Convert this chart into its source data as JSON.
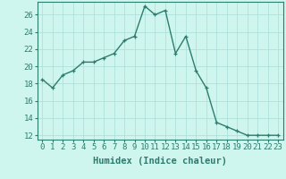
{
  "x": [
    0,
    1,
    2,
    3,
    4,
    5,
    6,
    7,
    8,
    9,
    10,
    11,
    12,
    13,
    14,
    15,
    16,
    17,
    18,
    19,
    20,
    21,
    22,
    23
  ],
  "y": [
    18.5,
    17.5,
    19.0,
    19.5,
    20.5,
    20.5,
    21.0,
    21.5,
    23.0,
    23.5,
    27.0,
    26.0,
    26.5,
    21.5,
    23.5,
    19.5,
    17.5,
    13.5,
    13.0,
    12.5,
    12.0,
    12.0,
    12.0,
    12.0
  ],
  "line_color": "#2d7d6e",
  "marker_color": "#2d7d6e",
  "bg_color": "#cef5ee",
  "grid_color": "#a8ddd6",
  "xlabel": "Humidex (Indice chaleur)",
  "ylim": [
    11.5,
    27.5
  ],
  "xlim": [
    -0.5,
    23.5
  ],
  "yticks": [
    12,
    14,
    16,
    18,
    20,
    22,
    24,
    26
  ],
  "xticks": [
    0,
    1,
    2,
    3,
    4,
    5,
    6,
    7,
    8,
    9,
    10,
    11,
    12,
    13,
    14,
    15,
    16,
    17,
    18,
    19,
    20,
    21,
    22,
    23
  ],
  "xlabel_fontsize": 7.5,
  "tick_fontsize": 6.5,
  "line_width": 1.0,
  "marker_size": 3.5
}
